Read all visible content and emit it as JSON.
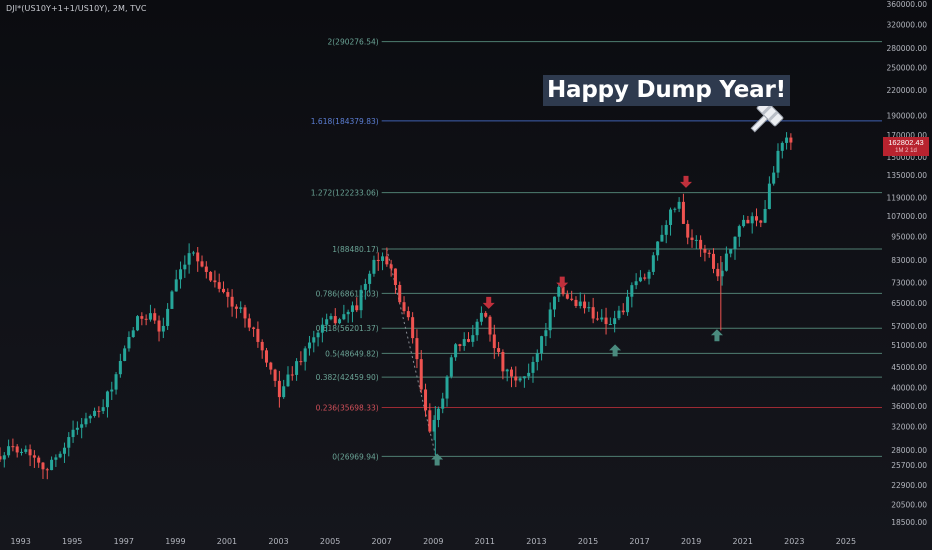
{
  "symbol": "DJI*(US10Y+1+1/US10Y), 2M, TVC",
  "annotation": "Happy Dump Year!",
  "current_price": {
    "value": 162802.43,
    "label": "162802.43",
    "countdown": "1M 2 1d",
    "color": "#b8232f"
  },
  "colors": {
    "up": "#26a69a",
    "down": "#ef5350",
    "fib_green": "#4f7e71",
    "fib_blue": "#3f5fb0",
    "fib_red": "#9c2a33",
    "arrow_green": "#4a8a7e",
    "arrow_red": "#c0303c"
  },
  "chart_data": {
    "type": "candlestick",
    "xlim": [
      1992.2,
      2026.4
    ],
    "ylim": [
      18000,
      360000
    ],
    "yscale": "log",
    "x_ticks": [
      "1993",
      "1995",
      "1997",
      "1999",
      "2001",
      "2003",
      "2005",
      "2007",
      "2009",
      "2011",
      "2013",
      "2015",
      "2017",
      "2019",
      "2021",
      "2023",
      "2025"
    ],
    "y_ticks": [
      "360000.00",
      "320000.00",
      "280000.00",
      "250000.00",
      "220000.00",
      "190000.00",
      "170000.00",
      "150000.00",
      "135000.00",
      "119000.00",
      "107000.00",
      "95000.00",
      "83000.00",
      "73000.00",
      "65000.00",
      "57000.00",
      "51000.00",
      "45000.00",
      "40000.00",
      "36000.00",
      "32000.00",
      "28000.00",
      "25700.00",
      "22900.00",
      "20500.00",
      "18500.00"
    ],
    "fib_levels": [
      {
        "label": "2(290276.54)",
        "value": 290276.54,
        "color": "green"
      },
      {
        "label": "1.618(184379.83)",
        "value": 184379.83,
        "color": "blue"
      },
      {
        "label": "1.272(122233.06)",
        "value": 122233.06,
        "color": "green"
      },
      {
        "label": "1(88480.17)",
        "value": 88480.17,
        "color": "green"
      },
      {
        "label": "0.786(68612.03)",
        "value": 68612.03,
        "color": "green"
      },
      {
        "label": "0.618(56201.37)",
        "value": 56201.37,
        "color": "green"
      },
      {
        "label": "0.5(48649.82)",
        "value": 48649.82,
        "color": "green"
      },
      {
        "label": "0.382(42459.90)",
        "value": 42459.9,
        "color": "green"
      },
      {
        "label": "0.236(35698.33)",
        "value": 35698.33,
        "color": "red"
      },
      {
        "label": "0(26969.94)",
        "value": 26969.94,
        "color": "green"
      }
    ],
    "fib_x_start": 2007.0,
    "fib_x_end": 2026.4,
    "arrows": [
      {
        "dir": "up",
        "x": 2009.15,
        "y": 26500
      },
      {
        "dir": "down",
        "x": 2011.15,
        "y": 65000
      },
      {
        "dir": "down",
        "x": 2014.0,
        "y": 73000
      },
      {
        "dir": "up",
        "x": 2016.05,
        "y": 49500
      },
      {
        "dir": "down",
        "x": 2018.8,
        "y": 130000
      },
      {
        "dir": "up",
        "x": 2020.0,
        "y": 54000
      }
    ],
    "path": [
      [
        1992.2,
        27000
      ],
      [
        1993.0,
        28500
      ],
      [
        1993.6,
        27500
      ],
      [
        1994.2,
        25000
      ],
      [
        1994.8,
        28500
      ],
      [
        1995.5,
        33000
      ],
      [
        1996.3,
        35000
      ],
      [
        1997.0,
        45000
      ],
      [
        1997.6,
        58000
      ],
      [
        1998.2,
        62000
      ],
      [
        1998.6,
        54000
      ],
      [
        1999.0,
        68000
      ],
      [
        1999.5,
        80000
      ],
      [
        1999.9,
        88000
      ],
      [
        2000.4,
        76000
      ],
      [
        2000.9,
        72000
      ],
      [
        2001.4,
        63000
      ],
      [
        2001.8,
        62000
      ],
      [
        2002.3,
        54000
      ],
      [
        2002.8,
        44000
      ],
      [
        2003.2,
        39000
      ],
      [
        2003.8,
        45000
      ],
      [
        2004.4,
        52000
      ],
      [
        2005.0,
        58000
      ],
      [
        2005.6,
        60000
      ],
      [
        2006.2,
        64000
      ],
      [
        2006.8,
        80000
      ],
      [
        2007.3,
        86000
      ],
      [
        2007.8,
        68000
      ],
      [
        2008.3,
        56000
      ],
      [
        2008.7,
        40000
      ],
      [
        2009.05,
        30000
      ],
      [
        2009.5,
        38000
      ],
      [
        2010.0,
        50000
      ],
      [
        2010.5,
        52000
      ],
      [
        2011.1,
        63000
      ],
      [
        2011.5,
        52000
      ],
      [
        2011.9,
        44000
      ],
      [
        2012.4,
        41000
      ],
      [
        2012.9,
        44000
      ],
      [
        2013.5,
        56000
      ],
      [
        2014.0,
        70000
      ],
      [
        2014.5,
        66000
      ],
      [
        2015.0,
        64000
      ],
      [
        2015.5,
        60000
      ],
      [
        2016.0,
        58000
      ],
      [
        2016.5,
        62000
      ],
      [
        2017.0,
        73000
      ],
      [
        2017.5,
        76000
      ],
      [
        2017.9,
        95000
      ],
      [
        2018.3,
        107000
      ],
      [
        2018.7,
        117000
      ],
      [
        2019.0,
        96000
      ],
      [
        2019.5,
        90000
      ],
      [
        2019.9,
        85000
      ],
      [
        2020.2,
        75000
      ],
      [
        2020.6,
        88000
      ],
      [
        2021.0,
        100000
      ],
      [
        2021.5,
        107000
      ],
      [
        2021.9,
        105000
      ],
      [
        2022.2,
        128000
      ],
      [
        2022.5,
        150000
      ],
      [
        2022.75,
        172000
      ],
      [
        2022.9,
        162802.43
      ]
    ]
  }
}
